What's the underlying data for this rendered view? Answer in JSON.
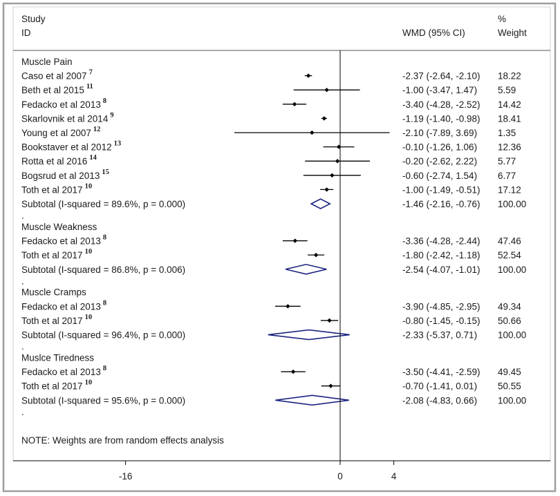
{
  "header": {
    "study_line1": "Study",
    "study_line2": "ID",
    "effect_label": "WMD (95% CI)",
    "weight_line1": "%",
    "weight_line2": "Weight"
  },
  "note": "NOTE: Weights are from random effects analysis",
  "subgroup_separator": ".",
  "colors": {
    "line": "#000000",
    "diamond": "#1a237e",
    "frame": "#9e9e9e"
  },
  "chart_data": {
    "type": "forest",
    "xaxis": {
      "ticks": [
        -16,
        0,
        4
      ],
      "tick_labels": [
        "-16",
        "0",
        "4"
      ],
      "xlim": [
        -18.5,
        8.5
      ],
      "null_line": 0
    },
    "groups": [
      {
        "name": "Muscle Pain",
        "studies": [
          {
            "label": "Caso et al 2007",
            "ref": "7",
            "est": -2.37,
            "lo": -2.64,
            "hi": -2.1,
            "ci_text": "-2.37 (-2.64, -2.10)",
            "weight": "18.22"
          },
          {
            "label": "Beth et al 2015",
            "ref": "11",
            "est": -1.0,
            "lo": -3.47,
            "hi": 1.47,
            "ci_text": "-1.00 (-3.47, 1.47)",
            "weight": "5.59"
          },
          {
            "label": "Fedacko et al 2013",
            "ref": "8",
            "est": -3.4,
            "lo": -4.28,
            "hi": -2.52,
            "ci_text": "-3.40 (-4.28, -2.52)",
            "weight": "14.42"
          },
          {
            "label": "Skarlovnik et al 2014",
            "ref": "9",
            "est": -1.19,
            "lo": -1.4,
            "hi": -0.98,
            "ci_text": "-1.19 (-1.40, -0.98)",
            "weight": "18.41"
          },
          {
            "label": "Young et al 2007",
            "ref": "12",
            "est": -2.1,
            "lo": -7.89,
            "hi": 3.69,
            "ci_text": "-2.10 (-7.89, 3.69)",
            "weight": "1.35"
          },
          {
            "label": "Bookstaver et al 2012",
            "ref": "13",
            "est": -0.1,
            "lo": -1.26,
            "hi": 1.06,
            "ci_text": "-0.10 (-1.26, 1.06)",
            "weight": "12.36"
          },
          {
            "label": "Rotta et al 2016",
            "ref": "14",
            "est": -0.2,
            "lo": -2.62,
            "hi": 2.22,
            "ci_text": "-0.20 (-2.62, 2.22)",
            "weight": "5.77"
          },
          {
            "label": "Bogsrud et al 2013",
            "ref": "15",
            "est": -0.6,
            "lo": -2.74,
            "hi": 1.54,
            "ci_text": "-0.60 (-2.74, 1.54)",
            "weight": "6.77"
          },
          {
            "label": "Toth et al 2017",
            "ref": "10",
            "est": -1.0,
            "lo": -1.49,
            "hi": -0.51,
            "ci_text": "-1.00 (-1.49, -0.51)",
            "weight": "17.12"
          }
        ],
        "subtotal": {
          "label": "Subtotal  (I-squared = 89.6%, p = 0.000)",
          "est": -1.46,
          "lo": -2.16,
          "hi": -0.76,
          "ci_text": "-1.46 (-2.16, -0.76)",
          "weight": "100.00"
        }
      },
      {
        "name": "Muscle Weakness",
        "studies": [
          {
            "label": "Fedacko et al 2013",
            "ref": "8",
            "est": -3.36,
            "lo": -4.28,
            "hi": -2.44,
            "ci_text": "-3.36 (-4.28, -2.44)",
            "weight": "47.46"
          },
          {
            "label": "Toth et al 2017",
            "ref": "10",
            "est": -1.8,
            "lo": -2.42,
            "hi": -1.18,
            "ci_text": "-1.80 (-2.42, -1.18)",
            "weight": "52.54"
          }
        ],
        "subtotal": {
          "label": "Subtotal  (I-squared = 86.8%, p = 0.006)",
          "est": -2.54,
          "lo": -4.07,
          "hi": -1.01,
          "ci_text": "-2.54 (-4.07, -1.01)",
          "weight": "100.00"
        }
      },
      {
        "name": "Muscle Cramps",
        "studies": [
          {
            "label": "Fedacko et al 2013",
            "ref": "8",
            "est": -3.9,
            "lo": -4.85,
            "hi": -2.95,
            "ci_text": "-3.90 (-4.85, -2.95)",
            "weight": "49.34"
          },
          {
            "label": "Toth et al 2017",
            "ref": "10",
            "est": -0.8,
            "lo": -1.45,
            "hi": -0.15,
            "ci_text": "-0.80 (-1.45, -0.15)",
            "weight": "50.66"
          }
        ],
        "subtotal": {
          "label": "Subtotal  (I-squared = 96.4%, p = 0.000)",
          "est": -2.33,
          "lo": -5.37,
          "hi": 0.71,
          "ci_text": "-2.33 (-5.37, 0.71)",
          "weight": "100.00"
        }
      },
      {
        "name": "Muslce Tiredness",
        "studies": [
          {
            "label": "Fedacko et al 2013",
            "ref": "8",
            "est": -3.5,
            "lo": -4.41,
            "hi": -2.59,
            "ci_text": "-3.50 (-4.41, -2.59)",
            "weight": "49.45"
          },
          {
            "label": "Toth et al 2017",
            "ref": "10",
            "est": -0.7,
            "lo": -1.41,
            "hi": 0.01,
            "ci_text": "-0.70 (-1.41, 0.01)",
            "weight": "50.55"
          }
        ],
        "subtotal": {
          "label": "Subtotal  (I-squared = 95.6%, p = 0.000)",
          "est": -2.08,
          "lo": -4.83,
          "hi": 0.66,
          "ci_text": "-2.08 (-4.83, 0.66)",
          "weight": "100.00"
        }
      }
    ]
  }
}
